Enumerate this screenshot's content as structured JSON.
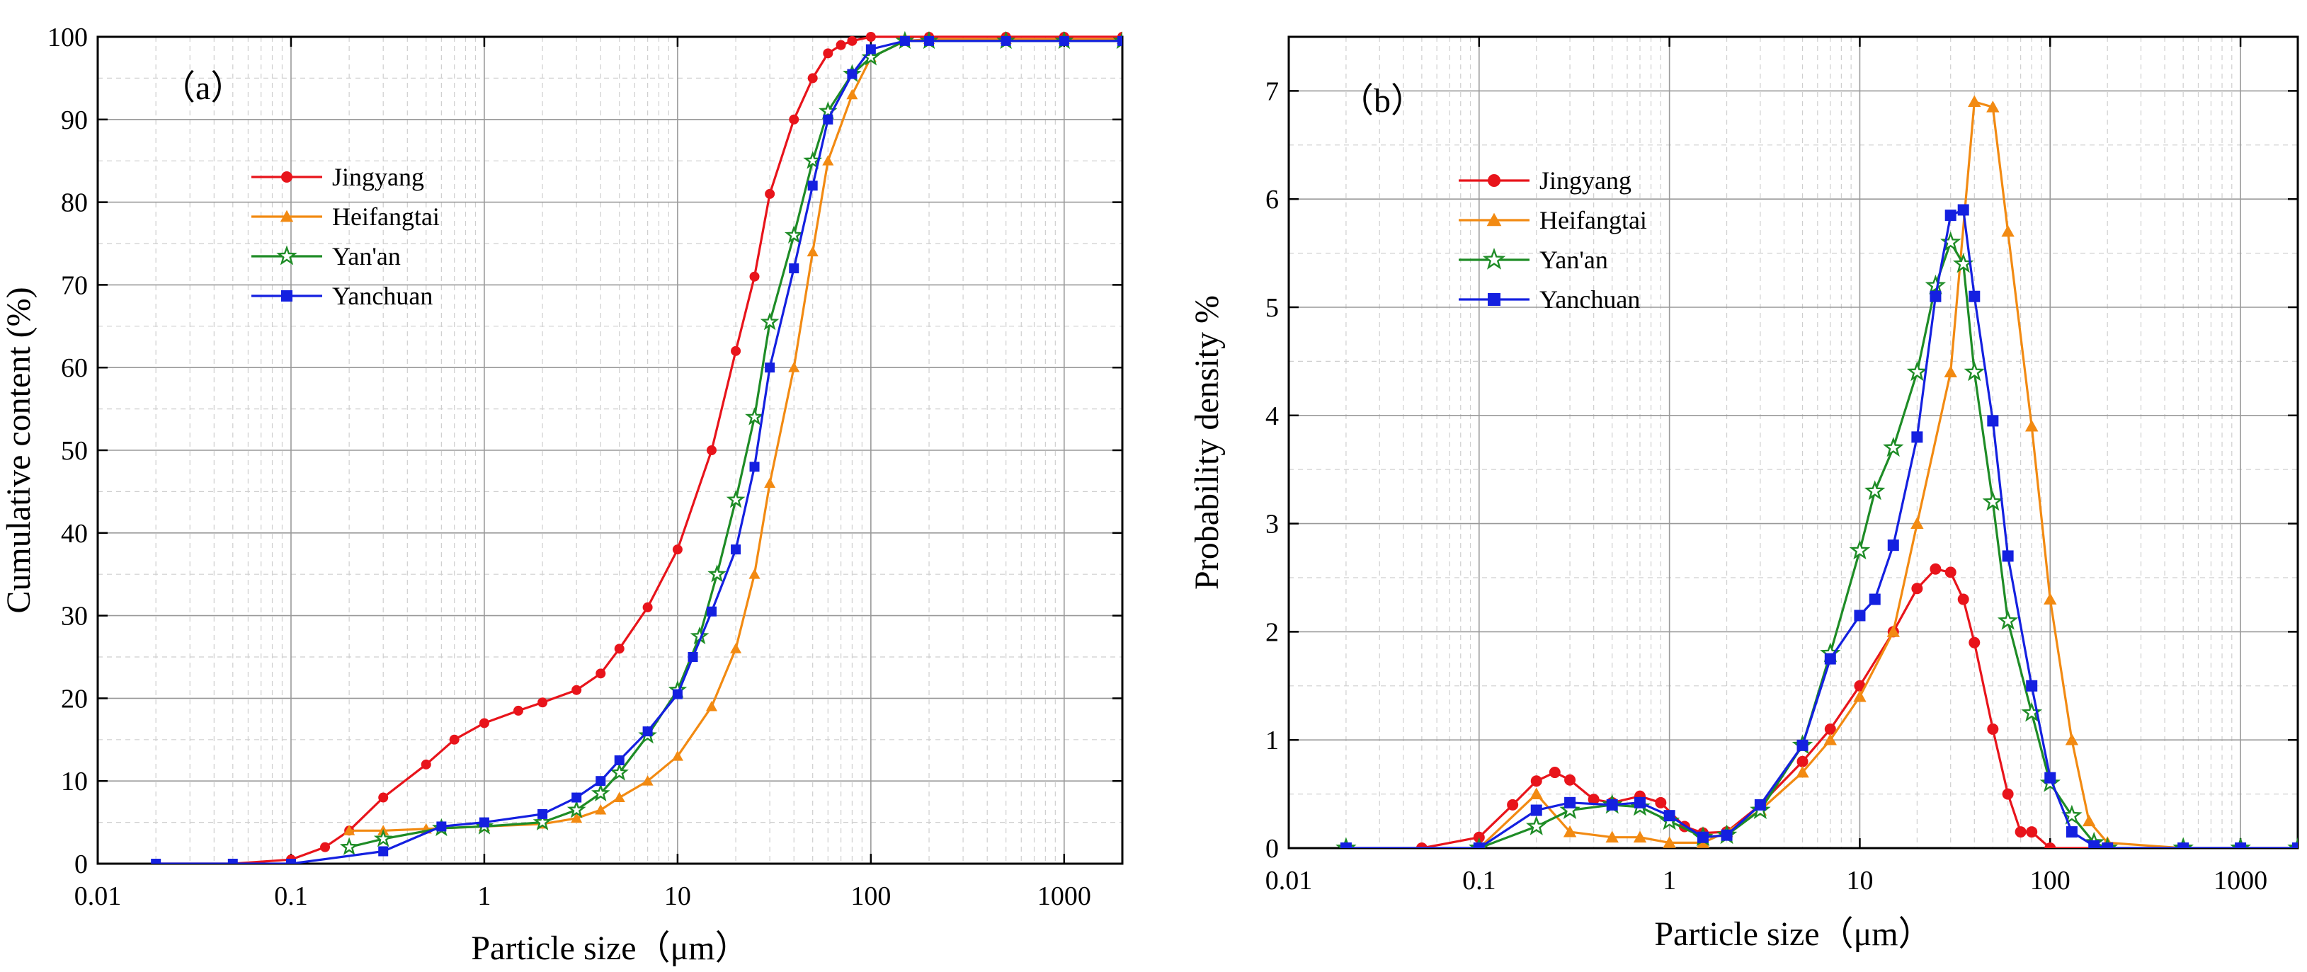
{
  "chart_data": [
    {
      "type": "line",
      "panel_label": "（a）",
      "xlabel": "Particle size（μm）",
      "ylabel": "Cumulative content (%)",
      "xscale": "log",
      "xlim": [
        0.01,
        2000
      ],
      "ylim": [
        0,
        100
      ],
      "x_ticks": [
        0.01,
        0.1,
        1,
        10,
        100,
        1000
      ],
      "x_tick_labels": [
        "0.01",
        "0.1",
        "1",
        "10",
        "100",
        "1000"
      ],
      "y_ticks": [
        0,
        10,
        20,
        30,
        40,
        50,
        60,
        70,
        80,
        90,
        100
      ],
      "y_tick_labels": [
        "0",
        "10",
        "20",
        "30",
        "40",
        "50",
        "60",
        "70",
        "80",
        "90",
        "100"
      ],
      "grid": true,
      "legend_position": "top-left",
      "series": [
        {
          "name": "Jingyang",
          "color": "#e8141b",
          "marker": "circle",
          "x": [
            0.02,
            0.05,
            0.1,
            0.15,
            0.2,
            0.3,
            0.5,
            0.7,
            1,
            1.5,
            2,
            3,
            4,
            5,
            7,
            10,
            15,
            20,
            25,
            30,
            40,
            50,
            60,
            70,
            80,
            100,
            200,
            500,
            1000,
            2000
          ],
          "y": [
            0,
            0,
            0.5,
            2,
            4,
            8,
            12,
            15,
            17,
            18.5,
            19.5,
            21,
            23,
            26,
            31,
            38,
            50,
            62,
            71,
            81,
            90,
            95,
            98,
            99,
            99.5,
            100,
            100,
            100,
            100,
            100
          ]
        },
        {
          "name": "Heifangtai",
          "color": "#f28a12",
          "marker": "triangle",
          "x": [
            0.2,
            0.3,
            0.5,
            1,
            2,
            3,
            4,
            5,
            7,
            10,
            15,
            20,
            25,
            30,
            40,
            50,
            60,
            80,
            100,
            150,
            200,
            500,
            1000,
            2000
          ],
          "y": [
            4,
            4,
            4.2,
            4.5,
            4.8,
            5.5,
            6.5,
            8,
            10,
            13,
            19,
            26,
            35,
            46,
            60,
            74,
            85,
            93,
            97.5,
            99.5,
            99.7,
            99.7,
            99.7,
            99.7
          ]
        },
        {
          "name": "Yan'an",
          "color": "#1e8c26",
          "marker": "star",
          "x": [
            0.2,
            0.3,
            0.6,
            1,
            2,
            3,
            4,
            5,
            7,
            10,
            13,
            16,
            20,
            25,
            30,
            40,
            50,
            60,
            80,
            100,
            150,
            200,
            500,
            1000,
            2000
          ],
          "y": [
            2,
            3,
            4.3,
            4.5,
            5,
            6.5,
            8.5,
            11,
            15.5,
            21,
            27.5,
            35,
            44,
            54,
            65.5,
            76,
            85,
            91,
            95.5,
            97.5,
            99.5,
            99.5,
            99.5,
            99.5,
            99.5
          ]
        },
        {
          "name": "Yanchuan",
          "color": "#1420e0",
          "marker": "square",
          "x": [
            0.02,
            0.05,
            0.1,
            0.3,
            0.6,
            1,
            2,
            3,
            4,
            5,
            7,
            10,
            12,
            15,
            20,
            25,
            30,
            40,
            50,
            60,
            80,
            100,
            150,
            200,
            500,
            1000,
            2000
          ],
          "y": [
            0,
            0,
            0,
            1.5,
            4.5,
            5,
            6,
            8,
            10,
            12.5,
            16,
            20.5,
            25,
            30.5,
            38,
            48,
            60,
            72,
            82,
            90,
            95.5,
            98.5,
            99.5,
            99.5,
            99.5,
            99.5,
            99.5
          ]
        }
      ]
    },
    {
      "type": "line",
      "panel_label": "（b）",
      "xlabel": "Particle size（μm）",
      "ylabel": "Probability density  %",
      "xscale": "log",
      "xlim": [
        0.01,
        2000
      ],
      "ylim": [
        0,
        7.5
      ],
      "x_ticks": [
        0.01,
        0.1,
        1,
        10,
        100,
        1000
      ],
      "x_tick_labels": [
        "0.01",
        "0.1",
        "1",
        "10",
        "100",
        "1000"
      ],
      "y_ticks": [
        0,
        1,
        2,
        3,
        4,
        5,
        6,
        7
      ],
      "y_tick_labels": [
        "0",
        "1",
        "2",
        "3",
        "4",
        "5",
        "6",
        "7"
      ],
      "grid": true,
      "legend_position": "top-left",
      "series": [
        {
          "name": "Jingyang",
          "color": "#e8141b",
          "marker": "circle",
          "x": [
            0.02,
            0.05,
            0.1,
            0.15,
            0.2,
            0.25,
            0.3,
            0.4,
            0.5,
            0.7,
            0.9,
            1.2,
            1.5,
            2,
            3,
            5,
            7,
            10,
            15,
            20,
            25,
            30,
            35,
            40,
            50,
            60,
            70,
            80,
            100,
            200,
            500,
            1000,
            2000
          ],
          "y": [
            0,
            0,
            0.1,
            0.4,
            0.62,
            0.7,
            0.63,
            0.45,
            0.42,
            0.48,
            0.42,
            0.2,
            0.14,
            0.15,
            0.4,
            0.8,
            1.1,
            1.5,
            2.0,
            2.4,
            2.58,
            2.55,
            2.3,
            1.9,
            1.1,
            0.5,
            0.15,
            0.15,
            0,
            0,
            0,
            0,
            0
          ]
        },
        {
          "name": "Heifangtai",
          "color": "#f28a12",
          "marker": "triangle",
          "x": [
            0.02,
            0.1,
            0.2,
            0.3,
            0.5,
            0.7,
            1,
            1.5,
            2,
            3,
            5,
            7,
            10,
            15,
            20,
            30,
            40,
            50,
            60,
            80,
            100,
            130,
            160,
            200,
            500,
            1000,
            2000
          ],
          "y": [
            0,
            0,
            0.5,
            0.15,
            0.1,
            0.1,
            0.05,
            0.05,
            0.15,
            0.35,
            0.7,
            1.0,
            1.4,
            2.0,
            3.0,
            4.4,
            6.9,
            6.85,
            5.7,
            3.9,
            2.3,
            1.0,
            0.25,
            0.05,
            0,
            0,
            0
          ]
        },
        {
          "name": "Yan'an",
          "color": "#1e8c26",
          "marker": "star",
          "x": [
            0.02,
            0.1,
            0.2,
            0.3,
            0.5,
            0.7,
            1,
            1.5,
            2,
            3,
            5,
            7,
            10,
            12,
            15,
            20,
            25,
            30,
            35,
            40,
            50,
            60,
            80,
            100,
            130,
            170,
            200,
            500,
            1000,
            2000
          ],
          "y": [
            0,
            0,
            0.2,
            0.35,
            0.4,
            0.38,
            0.25,
            0.1,
            0.12,
            0.35,
            0.95,
            1.8,
            2.75,
            3.3,
            3.7,
            4.4,
            5.2,
            5.6,
            5.4,
            4.4,
            3.2,
            2.1,
            1.25,
            0.6,
            0.3,
            0.05,
            0,
            0,
            0,
            0
          ]
        },
        {
          "name": "Yanchuan",
          "color": "#1420e0",
          "marker": "square",
          "x": [
            0.02,
            0.1,
            0.2,
            0.3,
            0.5,
            0.7,
            1,
            1.5,
            2,
            3,
            5,
            7,
            10,
            12,
            15,
            20,
            25,
            30,
            35,
            40,
            50,
            60,
            80,
            100,
            130,
            170,
            200,
            500,
            1000,
            2000
          ],
          "y": [
            0,
            0,
            0.35,
            0.42,
            0.4,
            0.42,
            0.3,
            0.1,
            0.12,
            0.4,
            0.95,
            1.75,
            2.15,
            2.3,
            2.8,
            3.8,
            5.1,
            5.85,
            5.9,
            5.1,
            3.95,
            2.7,
            1.5,
            0.65,
            0.15,
            0.02,
            0,
            0,
            0,
            0
          ]
        }
      ]
    }
  ]
}
